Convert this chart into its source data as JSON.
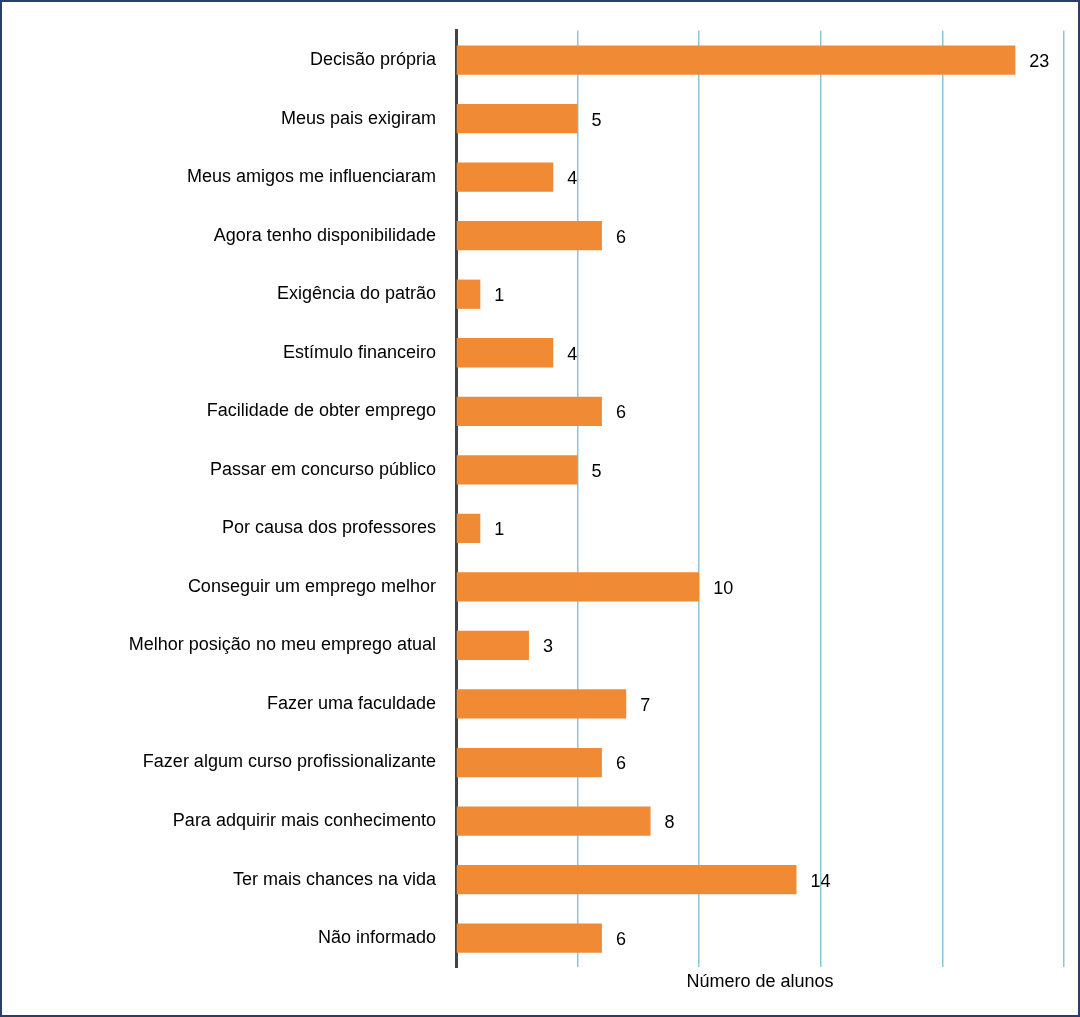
{
  "chart_data": {
    "type": "bar",
    "orientation": "horizontal",
    "xlabel": "Número de alunos",
    "categories": [
      "Decisão própria",
      "Meus pais exigiram",
      "Meus amigos me influenciaram",
      "Agora tenho disponibilidade",
      "Exigência do patrão",
      "Estímulo financeiro",
      "Facilidade de obter emprego",
      "Passar em concurso público",
      "Por causa dos professores",
      "Conseguir um emprego melhor",
      "Melhor posição no meu emprego atual",
      "Fazer uma faculdade",
      "Fazer algum curso profissionalizante",
      "Para adquirir mais conhecimento",
      "Ter mais chances na vida",
      "Não informado"
    ],
    "values": [
      23,
      5,
      4,
      6,
      1,
      4,
      6,
      5,
      1,
      10,
      3,
      7,
      6,
      8,
      14,
      6
    ],
    "color": "#f08a35",
    "xlim": [
      0,
      25
    ],
    "xticks": [
      {
        "value": 0,
        "label": null
      },
      {
        "value": 5,
        "label": null
      },
      {
        "value": 10,
        "label": null
      },
      {
        "value": 15,
        "label": null
      },
      {
        "value": 20,
        "label": null
      },
      {
        "value": 25,
        "label": null
      }
    ],
    "tick_labels": "y",
    "grid": "x",
    "data_labels": true,
    "legend": false
  }
}
